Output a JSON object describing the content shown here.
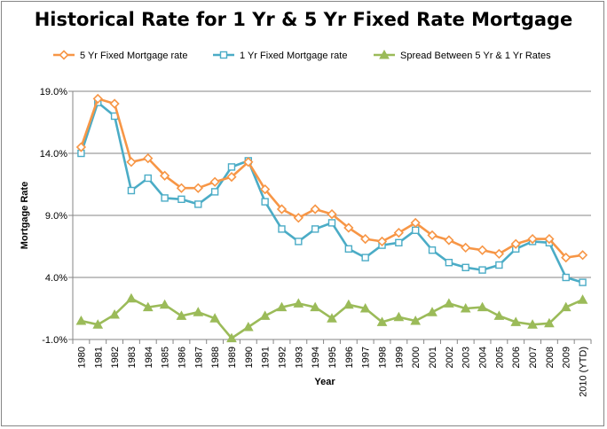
{
  "chart_data": {
    "type": "line",
    "title": "Historical Rate for 1 Yr & 5 Yr Fixed Rate Mortgage",
    "xlabel": "Year",
    "ylabel": "Mortgage Rate",
    "ylim": [
      -1.0,
      19.0
    ],
    "yticks": [
      "19.0%",
      "14.0%",
      "9.0%",
      "4.0%",
      "-1.0%"
    ],
    "ytick_values": [
      19.0,
      14.0,
      9.0,
      4.0,
      -1.0
    ],
    "grid": "horizontal",
    "legend_position": "top",
    "categories": [
      "1980",
      "1981",
      "1982",
      "1983",
      "1984",
      "1985",
      "1986",
      "1987",
      "1988",
      "1989",
      "1990",
      "1991",
      "1992",
      "1993",
      "1994",
      "1995",
      "1996",
      "1997",
      "1998",
      "1999",
      "2000",
      "2001",
      "2002",
      "2003",
      "2004",
      "2005",
      "2006",
      "2007",
      "2008",
      "2009",
      "2010 (YTD)"
    ],
    "series": [
      {
        "name": "5 Yr Fixed Mortgage rate",
        "color": "#f79646",
        "marker": "diamond",
        "values": [
          14.5,
          18.4,
          18.0,
          13.3,
          13.6,
          12.2,
          11.2,
          11.2,
          11.7,
          12.1,
          13.3,
          11.1,
          9.5,
          8.8,
          9.5,
          9.1,
          8.0,
          7.1,
          6.9,
          7.6,
          8.4,
          7.4,
          7.0,
          6.4,
          6.2,
          5.9,
          6.7,
          7.1,
          7.1,
          5.6,
          5.8
        ]
      },
      {
        "name": "1 Yr Fixed Mortgage rate",
        "color": "#4bacc6",
        "marker": "square",
        "values": [
          14.0,
          18.1,
          17.0,
          11.0,
          12.0,
          10.4,
          10.3,
          9.9,
          10.9,
          12.9,
          13.4,
          10.1,
          7.9,
          6.9,
          7.9,
          8.4,
          6.3,
          5.6,
          6.6,
          6.8,
          7.8,
          6.2,
          5.2,
          4.8,
          4.6,
          5.0,
          6.3,
          6.9,
          6.8,
          4.0,
          3.6
        ]
      },
      {
        "name": "Spread Between 5 Yr & 1 Yr Rates",
        "color": "#9bbb59",
        "marker": "triangle",
        "values": [
          0.5,
          0.2,
          1.0,
          2.3,
          1.6,
          1.8,
          0.9,
          1.2,
          0.7,
          -0.9,
          0.0,
          0.9,
          1.6,
          1.9,
          1.6,
          0.7,
          1.8,
          1.5,
          0.4,
          0.8,
          0.5,
          1.2,
          1.9,
          1.5,
          1.6,
          0.9,
          0.4,
          0.2,
          0.3,
          1.6,
          2.2
        ]
      }
    ]
  }
}
